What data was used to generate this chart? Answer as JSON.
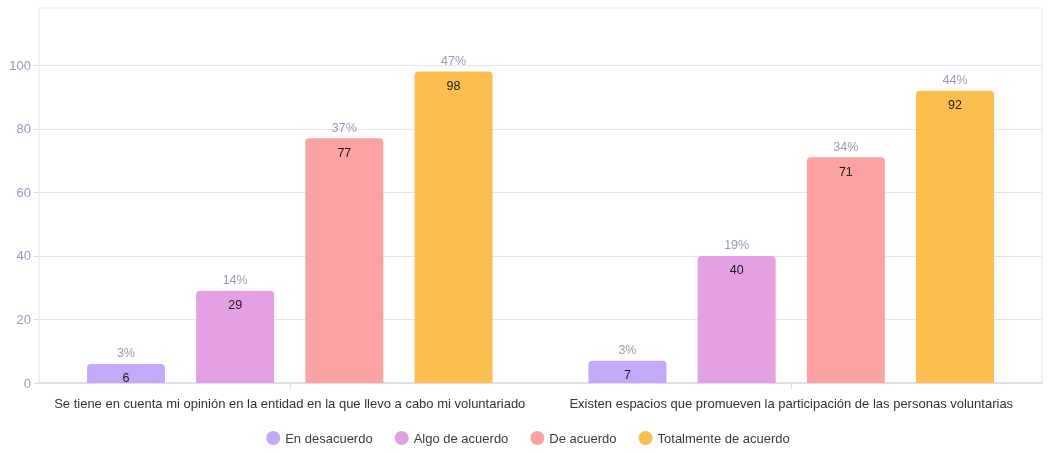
{
  "chart_data": {
    "type": "bar",
    "categories": [
      "Se tiene en cuenta mi opinión en la entidad en la que llevo a cabo mi voluntariado",
      "Existen espacios que promueven la participación de las personas voluntarias"
    ],
    "series": [
      {
        "name": "En desacuerdo",
        "color": "#c6a8fb",
        "values": [
          6,
          7
        ]
      },
      {
        "name": "Algo de acuerdo",
        "color": "#e2a0e3",
        "values": [
          29,
          40
        ]
      },
      {
        "name": "De acuerdo",
        "color": "#fba3a2",
        "values": [
          77,
          71
        ]
      },
      {
        "name": "Totalmente de acuerdo",
        "color": "#fdbe50",
        "values": [
          98,
          92
        ]
      }
    ],
    "annotations": [
      "3%",
      "14%",
      "37%",
      "47%",
      "3%",
      "19%",
      "34%",
      "44%"
    ],
    "ylim": [
      0,
      118
    ],
    "yticks": [
      0,
      20,
      40,
      60,
      80,
      100
    ],
    "grid": "y",
    "legend": "bottom",
    "data_labels": true
  }
}
